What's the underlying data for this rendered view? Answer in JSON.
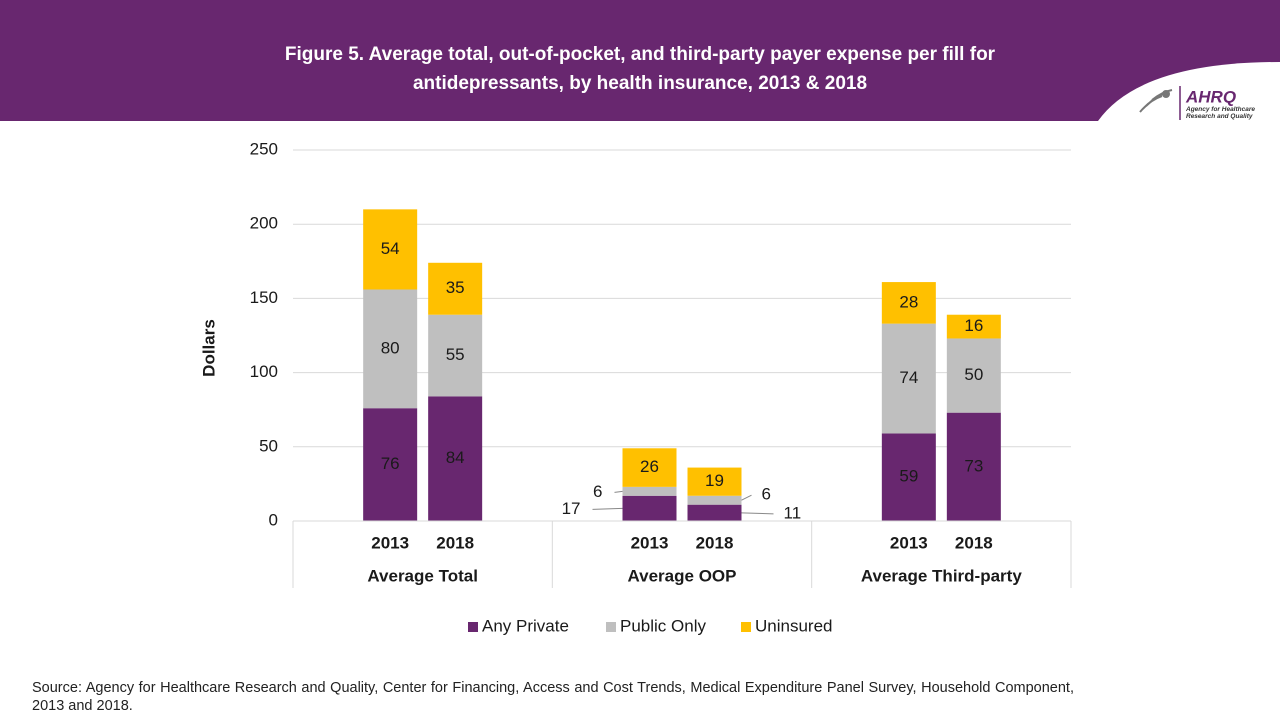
{
  "chart_data": {
    "type": "stacked-bar",
    "title": "Figure 5. Average total, out-of-pocket, and third-party payer expense per fill for antidepressants, by health insurance, 2013 & 2018",
    "y_label": "Dollars",
    "categories": [
      "2013",
      "2018",
      "2013",
      "2018",
      "2013",
      "2018"
    ],
    "groups": [
      "Average Total",
      "Average OOP",
      "Average Third-party"
    ],
    "series": [
      {
        "name": "Any Private",
        "color": "#68276f",
        "values": [
          76,
          84,
          17,
          11,
          59,
          73
        ]
      },
      {
        "name": "Public Only",
        "color": "#bfbfbf",
        "values": [
          80,
          55,
          6,
          6,
          74,
          50
        ]
      },
      {
        "name": "Uninsured",
        "color": "#ffc000",
        "values": [
          54,
          35,
          26,
          19,
          28,
          16
        ]
      }
    ],
    "ylim": [
      0,
      250
    ],
    "yticks": [
      0,
      50,
      100,
      150,
      200,
      250
    ],
    "grid": true,
    "legend": "bottom",
    "source": "Source: Agency for Healthcare Research and Quality, Center for Financing, Access and Cost Trends, Medical Expenditure Panel Survey, Household Component, 2013 and 2018.",
    "logo": {
      "name": "AHRQ",
      "tagline": "Agency for Healthcare Research and Quality"
    }
  }
}
